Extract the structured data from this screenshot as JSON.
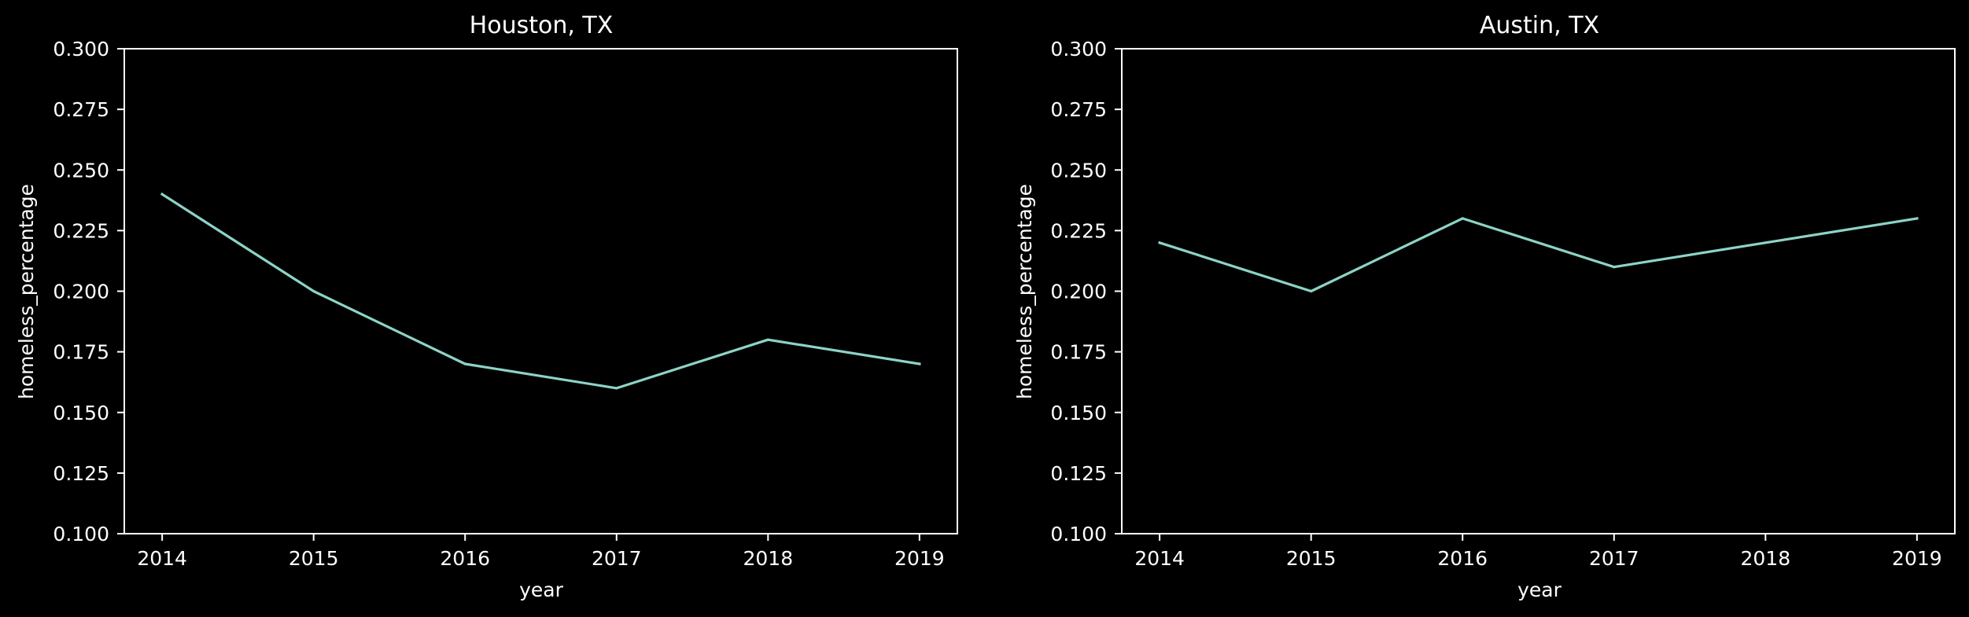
{
  "colors": {
    "background": "#000000",
    "axes": "#ffffff",
    "text": "#ffffff",
    "line": "#8dd3c7"
  },
  "chart_data": [
    {
      "type": "line",
      "title": "Houston, TX",
      "xlabel": "year",
      "ylabel": "homeless_percentage",
      "x": [
        2014,
        2015,
        2016,
        2017,
        2018,
        2019
      ],
      "series": [
        {
          "values": [
            0.24,
            0.2,
            0.17,
            0.16,
            0.18,
            0.17
          ]
        }
      ],
      "xlim": [
        2013.75,
        2019.25
      ],
      "ylim": [
        0.1,
        0.3
      ],
      "xticks": [
        "2014",
        "2015",
        "2016",
        "2017",
        "2018",
        "2019"
      ],
      "yticks": [
        "0.100",
        "0.125",
        "0.150",
        "0.175",
        "0.200",
        "0.225",
        "0.250",
        "0.275",
        "0.300"
      ],
      "grid": false
    },
    {
      "type": "line",
      "title": "Austin, TX",
      "xlabel": "year",
      "ylabel": "homeless_percentage",
      "x": [
        2014,
        2015,
        2016,
        2017,
        2018,
        2019
      ],
      "series": [
        {
          "values": [
            0.22,
            0.2,
            0.23,
            0.21,
            0.22,
            0.23
          ]
        }
      ],
      "xlim": [
        2013.75,
        2019.25
      ],
      "ylim": [
        0.1,
        0.3
      ],
      "xticks": [
        "2014",
        "2015",
        "2016",
        "2017",
        "2018",
        "2019"
      ],
      "yticks": [
        "0.100",
        "0.125",
        "0.150",
        "0.175",
        "0.200",
        "0.225",
        "0.250",
        "0.275",
        "0.300"
      ],
      "grid": false
    }
  ]
}
